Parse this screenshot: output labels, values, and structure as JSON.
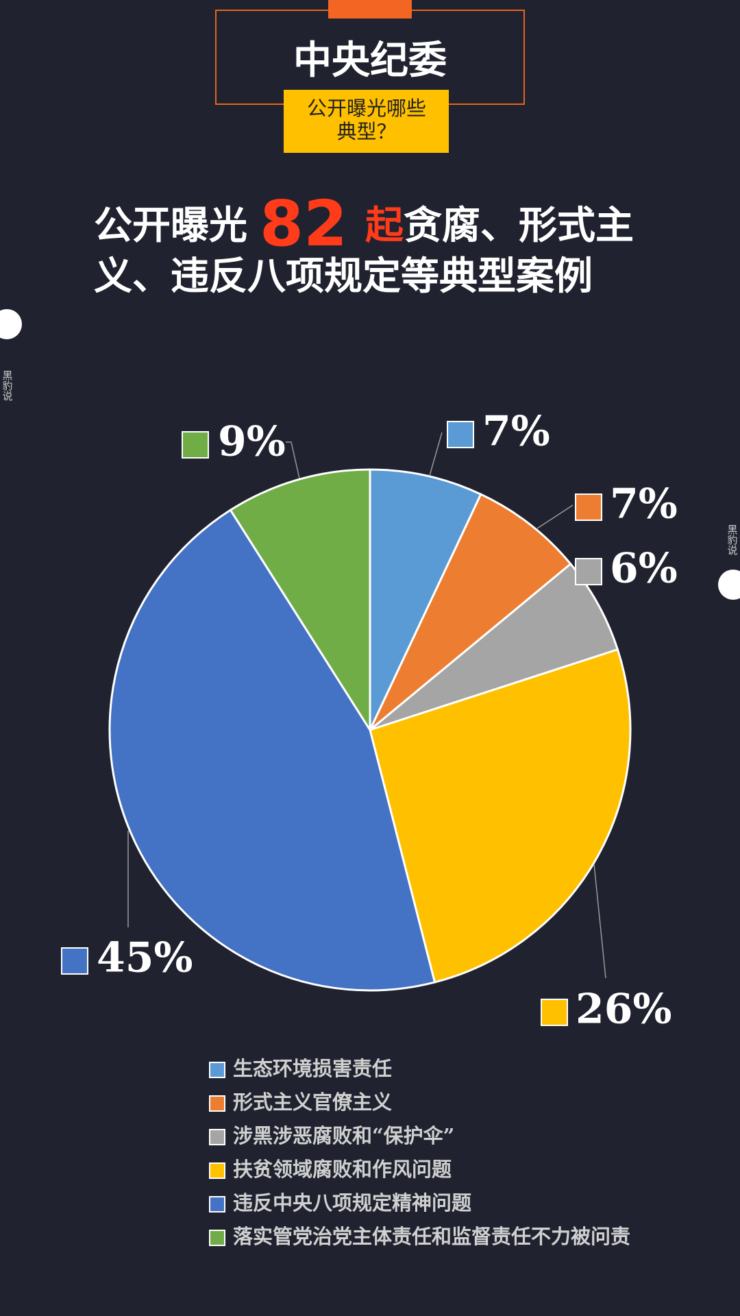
{
  "header": {
    "title": "中央纪委",
    "subtitle_lines": [
      "公开曝光哪些",
      "典型？"
    ]
  },
  "headline": {
    "prefix": "公开曝光",
    "number": 82,
    "unit": "起",
    "line1_rest": "贪腐、形式主",
    "line2": "义、违反八项规定等典型案例"
  },
  "watermark": "黑豹说",
  "chart_data": {
    "type": "pie",
    "categories": [
      "生态环境损害责任",
      "形式主义官僚主义",
      "涉黑涉恶腐败和“保护伞”",
      "扶贫领域腐败和作风问题",
      "违反中央八项规定精神问题",
      "落实管党治党主体责任和监督责任不力被问责"
    ],
    "values": [
      7,
      7,
      6,
      26,
      45,
      9
    ],
    "value_labels": [
      "7%",
      "7%",
      "6%",
      "26%",
      "45%",
      "9%"
    ],
    "colors": [
      "#5b9bd5",
      "#ed7d31",
      "#a5a5a5",
      "#ffc000",
      "#4472c4",
      "#70ad47"
    ]
  }
}
